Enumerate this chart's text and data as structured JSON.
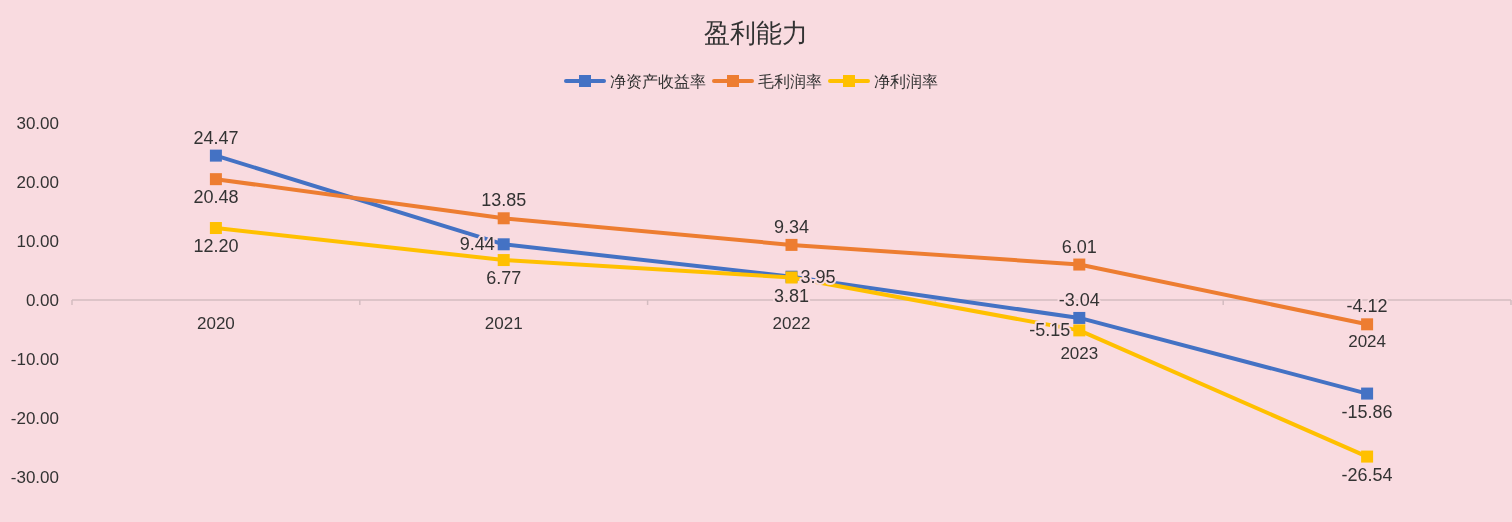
{
  "chart_data": {
    "type": "line",
    "title": "盈利能力",
    "categories": [
      "2020",
      "2021",
      "2022",
      "2023",
      "2024"
    ],
    "series": [
      {
        "name": "净资产收益率",
        "color": "#4472c4",
        "values": [
          24.47,
          9.44,
          3.95,
          -3.04,
          -15.86
        ],
        "value_labels": [
          "24.47",
          "9.44",
          "3.95",
          "-3.04",
          "-15.86"
        ]
      },
      {
        "name": "毛利润率",
        "color": "#ed7d31",
        "values": [
          20.48,
          13.85,
          9.34,
          6.01,
          -4.12
        ],
        "value_labels": [
          "20.48",
          "13.85",
          "9.34",
          "6.01",
          "-4.12"
        ]
      },
      {
        "name": "净利润率",
        "color": "#ffc000",
        "values": [
          12.2,
          6.77,
          3.81,
          -5.15,
          -26.54
        ],
        "value_labels": [
          "12.20",
          "6.77",
          "3.81",
          "-5.15",
          "-26.54"
        ]
      }
    ],
    "ylim": [
      -30,
      30
    ],
    "yticks": [
      {
        "value": -30,
        "label": "-30.00"
      },
      {
        "value": -20,
        "label": "-20.00"
      },
      {
        "value": -10,
        "label": "-10.00"
      },
      {
        "value": 0,
        "label": "0.00"
      },
      {
        "value": 10,
        "label": "10.00"
      },
      {
        "value": 20,
        "label": "20.00"
      },
      {
        "value": 30,
        "label": "30.00"
      }
    ],
    "legend": "top",
    "marker": "square",
    "line_style": "solid"
  }
}
